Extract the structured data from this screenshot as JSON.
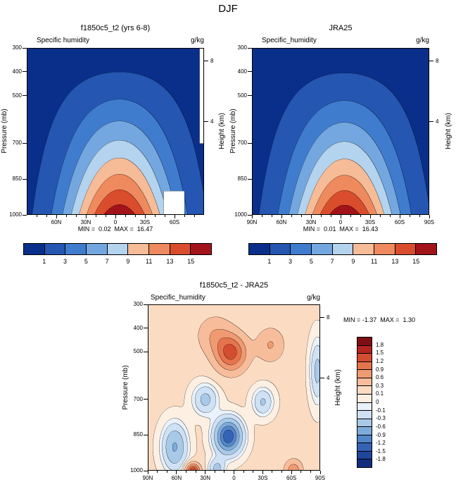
{
  "title": "DJF",
  "panels": {
    "model": {
      "title": "f1850c5_t2 (yrs 6-8)",
      "field_label": "Specific humidity",
      "units": "g/kg",
      "ylabel": "Pressure (mb)",
      "y2label": "Height (km)",
      "minmax": "MIN =  0.02  MAX =  16.47"
    },
    "obs": {
      "title": "JRA25",
      "field_label": "Specific_humidity",
      "units": "g/kg",
      "ylabel": "Pressure (mb)",
      "y2label": "Height (km)",
      "minmax": "MIN =  0.01  MAX =  16.43"
    },
    "diff": {
      "title": "f1850c5_t2 - JRA25",
      "field_label": "Specific_humidity",
      "units": "g/kg",
      "ylabel": "Pressure (mb)",
      "y2label": "Height (km)",
      "minmax": "MIN = -1.37  MAX =  1.30"
    }
  },
  "chart_data": [
    {
      "id": "model",
      "type": "filled_contour",
      "title": "f1850c5_t2 (yrs 6-8)",
      "season": "DJF",
      "variable": "Specific humidity",
      "units": "g/kg",
      "min": 0.02,
      "max": 16.47,
      "x_axis": {
        "orientation": "latitude",
        "range": [
          90,
          -90
        ],
        "tick_labels": [
          [
            60,
            "60N"
          ],
          [
            30,
            "30N"
          ],
          [
            0,
            "0"
          ],
          [
            -30,
            "30S"
          ],
          [
            -60,
            "60S"
          ]
        ]
      },
      "y_axis": {
        "label": "Pressure (mb)",
        "scale": "linear",
        "range": [
          300,
          1000
        ],
        "ticks": [
          300,
          400,
          500,
          700,
          850,
          1000
        ]
      },
      "y2_axis": {
        "label": "Height (km)",
        "ticks": [
          {
            "label": "8",
            "p": 356
          },
          {
            "label": "4",
            "p": 610
          }
        ]
      },
      "levels": [
        1,
        3,
        5,
        7,
        9,
        11,
        13,
        15
      ],
      "level_labels": [
        "1",
        "3",
        "5",
        "7",
        "9",
        "11",
        "13",
        "15"
      ],
      "colors": [
        "#0a2f8a",
        "#2456b2",
        "#3f7cce",
        "#74a7df",
        "#b3d3ee",
        "#f6bb97",
        "#ee8a5d",
        "#d94d2d",
        "#a2131a"
      ],
      "colorbar": "horizontal",
      "field": {
        "amplitude": 16.47,
        "lat_center": -4,
        "lat_width": 53,
        "p_exp": 1.44
      },
      "masks": [
        {
          "lat": [
            -70,
            -49
          ],
          "p": [
            900,
            1000
          ]
        },
        {
          "lat": [
            -90,
            -85.5
          ],
          "p": [
            300,
            700
          ]
        }
      ]
    },
    {
      "id": "obs",
      "type": "filled_contour",
      "title": "JRA25",
      "season": "DJF",
      "variable": "Specific_humidity",
      "units": "g/kg",
      "min": 0.01,
      "max": 16.43,
      "x_axis": {
        "orientation": "latitude",
        "range": [
          90,
          -90
        ],
        "tick_labels": [
          [
            90,
            "90N"
          ],
          [
            60,
            "60N"
          ],
          [
            30,
            "30N"
          ],
          [
            0,
            "0"
          ],
          [
            -30,
            "30S"
          ],
          [
            -60,
            "60S"
          ],
          [
            -90,
            "90S"
          ]
        ]
      },
      "y_axis": {
        "label": "Pressure (mb)",
        "scale": "linear",
        "range": [
          300,
          1000
        ],
        "ticks": [
          300,
          400,
          500,
          700,
          850,
          1000
        ]
      },
      "y2_axis": {
        "label": "Height (km)",
        "ticks": [
          {
            "label": "8",
            "p": 356
          },
          {
            "label": "4",
            "p": 610
          }
        ]
      },
      "levels": [
        1,
        3,
        5,
        7,
        9,
        11,
        13,
        15
      ],
      "level_labels": [
        "1",
        "3",
        "5",
        "7",
        "9",
        "11",
        "13",
        "15"
      ],
      "colors": [
        "#0a2f8a",
        "#2456b2",
        "#3f7cce",
        "#74a7df",
        "#b3d3ee",
        "#f6bb97",
        "#ee8a5d",
        "#d94d2d",
        "#a2131a"
      ],
      "colorbar": "horizontal",
      "field": {
        "amplitude": 16.43,
        "lat_center": -4,
        "lat_width": 52,
        "p_exp": 1.47
      }
    },
    {
      "id": "diff",
      "type": "filled_contour",
      "title": "f1850c5_t2 - JRA25",
      "season": "DJF",
      "variable": "Specific_humidity",
      "units": "g/kg",
      "min": -1.37,
      "max": 1.3,
      "x_axis": {
        "orientation": "latitude",
        "range": [
          90,
          -90
        ],
        "tick_labels": [
          [
            90,
            "90N"
          ],
          [
            60,
            "60N"
          ],
          [
            30,
            "30N"
          ],
          [
            0,
            "0"
          ],
          [
            -30,
            "30S"
          ],
          [
            -60,
            "60S"
          ],
          [
            -90,
            "90S"
          ]
        ]
      },
      "y_axis": {
        "label": "Pressure (mb)",
        "scale": "linear",
        "range": [
          300,
          1000
        ],
        "ticks": [
          300,
          400,
          500,
          700,
          850,
          1000
        ]
      },
      "y2_axis": {
        "label": "Height (km)",
        "ticks": [
          {
            "label": "8",
            "p": 356
          },
          {
            "label": "4",
            "p": 610
          }
        ]
      },
      "levels": [
        -1.8,
        -1.5,
        -1.2,
        -0.9,
        -0.6,
        -0.3,
        -0.1,
        0,
        0.1,
        0.3,
        0.6,
        0.9,
        1.2,
        1.5,
        1.8
      ],
      "level_labels": [
        "-1.8",
        "-1.5",
        "-1.2",
        "-0.9",
        "-0.6",
        "-0.3",
        "-0.1",
        "0",
        "0.1",
        "0.3",
        "0.6",
        "0.9",
        "1.2",
        "1.5",
        "1.8"
      ],
      "colors": [
        "#122d7d",
        "#20469c",
        "#3563b4",
        "#5386c8",
        "#7fabdb",
        "#a9c9e9",
        "#cfe1f4",
        "#e9f1fa",
        "#fdf0e3",
        "#fbdcc3",
        "#f7bd9b",
        "#f09a72",
        "#e5744d",
        "#d44d30",
        "#b52420",
        "#7f0f14"
      ],
      "colorbar": "vertical",
      "field": {
        "base": 0.12,
        "blobs": [
          [
            1.18,
            3,
            505,
            16,
            75
          ],
          [
            0.45,
            20,
            430,
            18,
            80
          ],
          [
            0.5,
            -38,
            470,
            14,
            70
          ],
          [
            -1.55,
            6,
            855,
            13,
            68
          ],
          [
            -0.5,
            30,
            700,
            12,
            60
          ],
          [
            -0.75,
            62,
            900,
            12,
            90
          ],
          [
            1.35,
            43,
            1000,
            7,
            30
          ],
          [
            0.7,
            -62,
            1000,
            9,
            45
          ],
          [
            -0.45,
            -30,
            710,
            10,
            55
          ],
          [
            -0.5,
            -87,
            580,
            7,
            120
          ],
          [
            -0.5,
            18,
            990,
            8,
            40
          ]
        ]
      }
    }
  ]
}
